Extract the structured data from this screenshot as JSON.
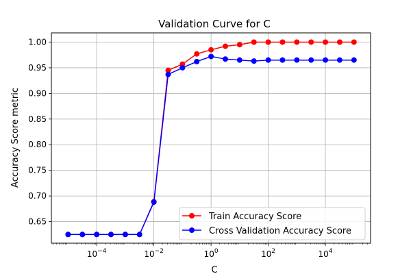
{
  "chart_data": {
    "type": "line",
    "title": "Validation Curve for C",
    "xlabel": "C",
    "ylabel": "Accuracy Score metric",
    "x_scale": "log",
    "xlim": [
      2.6e-06,
      380000.0
    ],
    "ylim": [
      0.608,
      1.018
    ],
    "x_ticks": [
      0.0001,
      0.01,
      1,
      100,
      10000
    ],
    "x_tick_labels": [
      {
        "base": "10",
        "exp": "−4"
      },
      {
        "base": "10",
        "exp": "−2"
      },
      {
        "base": "10",
        "exp": "0"
      },
      {
        "base": "10",
        "exp": "2"
      },
      {
        "base": "10",
        "exp": "4"
      }
    ],
    "y_ticks": [
      0.65,
      0.7,
      0.75,
      0.8,
      0.85,
      0.9,
      0.95,
      1.0
    ],
    "y_tick_labels": [
      "0.65",
      "0.70",
      "0.75",
      "0.80",
      "0.85",
      "0.90",
      "0.95",
      "1.00"
    ],
    "grid": true,
    "legend_position": "lower-right",
    "x": [
      1e-05,
      3.16e-05,
      0.0001,
      0.000316,
      0.001,
      0.00316,
      0.01,
      0.0316,
      0.1,
      0.316,
      1,
      3.16,
      10,
      31.6,
      100,
      316,
      1000,
      3160,
      10000,
      31600,
      100000
    ],
    "series": [
      {
        "name": "Train Accuracy Score",
        "color": "#ff0000",
        "values": [
          0.625,
          0.625,
          0.625,
          0.625,
          0.625,
          0.625,
          0.689,
          0.945,
          0.957,
          0.977,
          0.985,
          0.992,
          0.995,
          1.0,
          1.0,
          1.0,
          1.0,
          1.0,
          1.0,
          1.0,
          1.0
        ]
      },
      {
        "name": "Cross Validation Accuracy Score",
        "color": "#0000ff",
        "values": [
          0.625,
          0.625,
          0.625,
          0.625,
          0.625,
          0.625,
          0.688,
          0.937,
          0.95,
          0.962,
          0.972,
          0.967,
          0.965,
          0.963,
          0.965,
          0.965,
          0.965,
          0.965,
          0.965,
          0.965,
          0.965
        ]
      }
    ]
  }
}
